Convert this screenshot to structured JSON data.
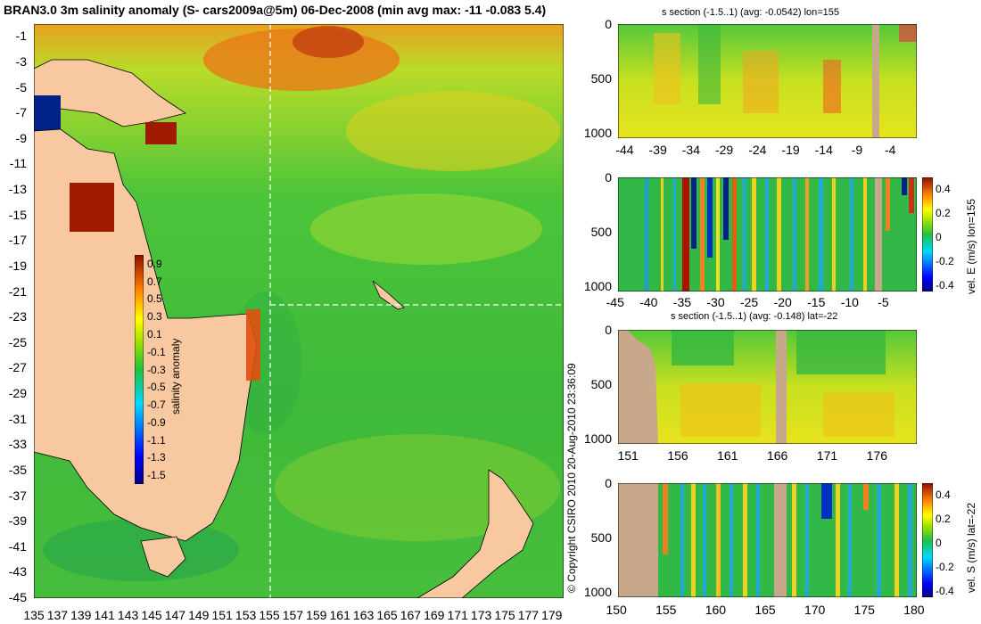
{
  "main_title": "BRAN3.0 3m salinity anomaly (S- cars2009a@5m) 06-Dec-2008 (min avg max: -11 -0.083 5.4)",
  "copyright": "© Copyright CSIRO 2010   20-Aug-2010 23:36:09",
  "chart_data": [
    {
      "type": "heatmap",
      "id": "map",
      "title": "BRAN3.0 3m salinity anomaly (S- cars2009a@5m) 06-Dec-2008 (min avg max: -11 -0.083 5.4)",
      "x_ticks": [
        "135",
        "137",
        "139",
        "141",
        "143",
        "145",
        "147",
        "149",
        "151",
        "153",
        "155",
        "157",
        "159",
        "161",
        "163",
        "165",
        "167",
        "169",
        "171",
        "173",
        "175",
        "177",
        "179"
      ],
      "y_ticks": [
        "-1",
        "-3",
        "-5",
        "-7",
        "-9",
        "-11",
        "-13",
        "-15",
        "-17",
        "-19",
        "-21",
        "-23",
        "-25",
        "-27",
        "-29",
        "-31",
        "-33",
        "-35",
        "-37",
        "-39",
        "-41",
        "-43",
        "-45"
      ],
      "xlim": [
        135,
        180
      ],
      "ylim": [
        -45,
        0
      ],
      "section_lines": {
        "lon": 155,
        "lat": -22
      },
      "colorbar": {
        "label": "salinity anomaly",
        "ticks": [
          "0.9",
          "0.7",
          "0.5",
          "0.3",
          "0.1",
          "-0.1",
          "-0.3",
          "-0.5",
          "-0.7",
          "-0.9",
          "-1.1",
          "-1.3",
          "-1.5"
        ],
        "range": [
          -1.5,
          0.9
        ]
      }
    },
    {
      "type": "heatmap",
      "id": "s_lon",
      "title": "s section (-1.5..1) (avg: -0.0542) lon=155",
      "x_ticks": [
        "-44",
        "-39",
        "-34",
        "-29",
        "-24",
        "-19",
        "-14",
        "-9",
        "-4"
      ],
      "y_ticks": [
        "0",
        "500",
        "1000"
      ],
      "xlim": [
        -45,
        0
      ],
      "ylim": [
        1050,
        0
      ]
    },
    {
      "type": "heatmap",
      "id": "u_lon",
      "title": "",
      "x_ticks": [
        "-45",
        "-40",
        "-35",
        "-30",
        "-25",
        "-20",
        "-15",
        "-10",
        "-5"
      ],
      "y_ticks": [
        "0",
        "500",
        "1000"
      ],
      "xlim": [
        -45,
        0
      ],
      "ylim": [
        1050,
        0
      ],
      "colorbar": {
        "label": "vel. E (m/s) lon=155",
        "ticks": [
          "0.4",
          "0.2",
          "0",
          "-0.2",
          "-0.4"
        ],
        "range": [
          -0.45,
          0.45
        ]
      }
    },
    {
      "type": "heatmap",
      "id": "s_lat",
      "title": "s section (-1.5..1) (avg: -0.148) lat=-22",
      "x_ticks": [
        "151",
        "156",
        "161",
        "166",
        "171",
        "176"
      ],
      "y_ticks": [
        "0",
        "500",
        "1000"
      ],
      "xlim": [
        150,
        180
      ],
      "ylim": [
        1050,
        0
      ]
    },
    {
      "type": "heatmap",
      "id": "v_lat",
      "title": "",
      "x_ticks": [
        "150",
        "155",
        "160",
        "165",
        "170",
        "175",
        "180"
      ],
      "y_ticks": [
        "0",
        "500",
        "1000"
      ],
      "xlim": [
        150,
        180
      ],
      "ylim": [
        1050,
        0
      ],
      "colorbar": {
        "label": "vel. S (m/s) lat=-22",
        "ticks": [
          "0.4",
          "0.2",
          "0",
          "-0.2",
          "-0.4"
        ],
        "range": [
          -0.45,
          0.45
        ]
      }
    }
  ]
}
